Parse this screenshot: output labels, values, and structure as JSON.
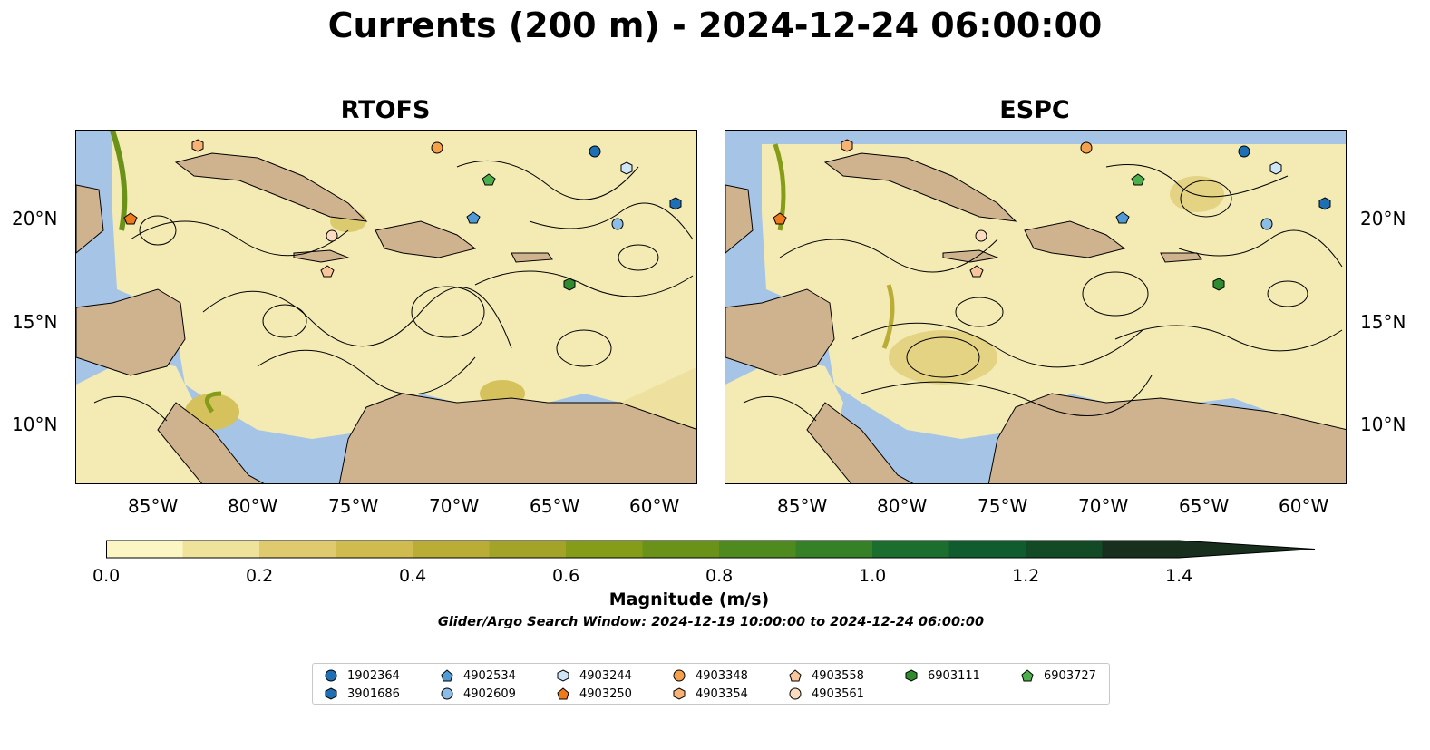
{
  "title": "Currents (200 m) - 2024-12-24 06:00:00",
  "panels": [
    {
      "name": "RTOFS"
    },
    {
      "name": "ESPC"
    }
  ],
  "lat_ticks": [
    "20°N",
    "15°N",
    "10°N"
  ],
  "lon_ticks": [
    "85°W",
    "80°W",
    "75°W",
    "70°W",
    "65°W",
    "60°W"
  ],
  "colorbar": {
    "label": "Magnitude (m/s)",
    "ticks": [
      "0.0",
      "0.2",
      "0.4",
      "0.6",
      "0.8",
      "1.0",
      "1.2",
      "1.4"
    ],
    "colors": [
      "#fbf6c3",
      "#efe29a",
      "#dfca6e",
      "#cfbb4e",
      "#b9ad35",
      "#a3a427",
      "#859c19",
      "#6b9218",
      "#4f8a1f",
      "#368027",
      "#1c6e2e",
      "#115c2e",
      "#134a26",
      "#172f1c"
    ]
  },
  "search_window": "Glider/Argo Search Window: 2024-12-19 10:00:00 to 2024-12-24 06:00:00",
  "legend": [
    {
      "id": "1902364",
      "marker": "circle",
      "color": "#1f6fb4"
    },
    {
      "id": "3901686",
      "marker": "hexagon",
      "color": "#1f6fb4"
    },
    {
      "id": "4902534",
      "marker": "pentagon",
      "color": "#4f9bd8"
    },
    {
      "id": "4902609",
      "marker": "circle",
      "color": "#8cbde6"
    },
    {
      "id": "4903244",
      "marker": "hexagon",
      "color": "#cfe6f7"
    },
    {
      "id": "4903250",
      "marker": "pentagon",
      "color": "#f07a1a"
    },
    {
      "id": "4903348",
      "marker": "circle",
      "color": "#f5a04a"
    },
    {
      "id": "4903354",
      "marker": "hexagon",
      "color": "#f7b274"
    },
    {
      "id": "4903558",
      "marker": "pentagon",
      "color": "#f9c69c"
    },
    {
      "id": "4903561",
      "marker": "circle",
      "color": "#fcdcc0"
    },
    {
      "id": "6903111",
      "marker": "hexagon",
      "color": "#2e8b2e"
    },
    {
      "id": "6903727",
      "marker": "pentagon",
      "color": "#4caf4c"
    }
  ],
  "map_colors": {
    "ocean": "#a6c4e6",
    "land": "#cfb28e",
    "current": "#f3ebb3"
  }
}
